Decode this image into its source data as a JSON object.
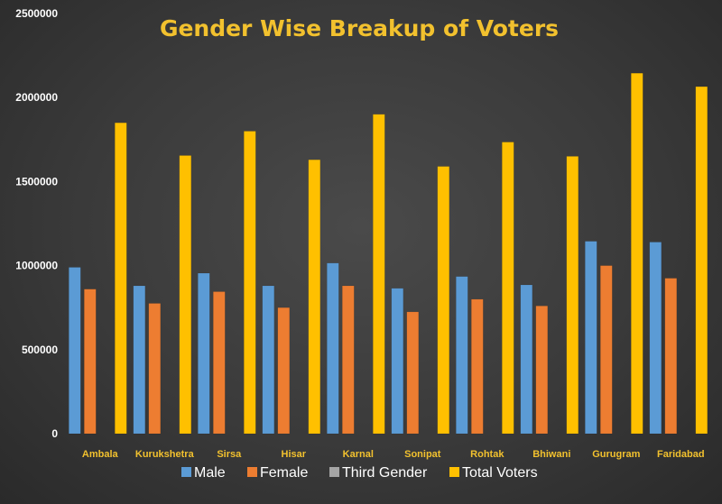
{
  "chart_data": {
    "type": "bar",
    "title": "Gender Wise Breakup of Voters",
    "xlabel": "",
    "ylabel": "",
    "ylim": [
      0,
      2500000
    ],
    "yticks": [
      "0",
      "500000",
      "1000000",
      "1500000",
      "2000000",
      "2500000"
    ],
    "grid": false,
    "legend_position": "bottom",
    "categories": [
      "Ambala",
      "Kurukshetra",
      "Sirsa",
      "Hisar",
      "Karnal",
      "Sonipat",
      "Rohtak",
      "Bhiwani",
      "Gurugram",
      "Faridabad"
    ],
    "series": [
      {
        "name": "Male",
        "color": "#5b9bd5",
        "values": [
          990000,
          880000,
          955000,
          880000,
          1015000,
          865000,
          935000,
          885000,
          1145000,
          1140000
        ]
      },
      {
        "name": "Female",
        "color": "#ed7d31",
        "values": [
          860000,
          775000,
          845000,
          750000,
          880000,
          725000,
          800000,
          760000,
          1000000,
          925000
        ]
      },
      {
        "name": "Third Gender",
        "color": "#a5a5a5",
        "values": [
          10,
          10,
          10,
          10,
          10,
          10,
          10,
          10,
          10,
          10
        ]
      },
      {
        "name": "Total Voters",
        "color": "#ffc000",
        "values": [
          1850000,
          1655000,
          1800000,
          1630000,
          1900000,
          1590000,
          1735000,
          1650000,
          2145000,
          2065000
        ]
      }
    ]
  }
}
